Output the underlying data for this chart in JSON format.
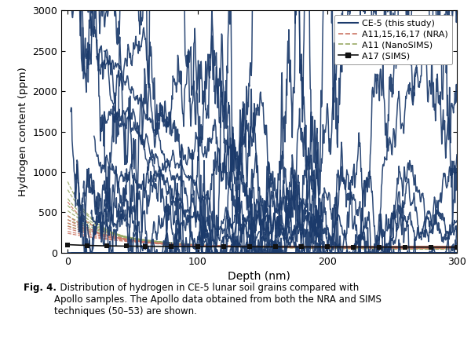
{
  "title": "",
  "xlabel": "Depth (nm)",
  "ylabel": "Hydrogen content (ppm)",
  "xlim": [
    -5,
    300
  ],
  "ylim": [
    0,
    3000
  ],
  "xticks": [
    0,
    100,
    200,
    300
  ],
  "yticks": [
    0,
    500,
    1000,
    1500,
    2000,
    2500,
    3000
  ],
  "ce5_color": "#1b3a6b",
  "nra_color": "#cc7766",
  "nanosims_color": "#99aa66",
  "sims_color": "#111111",
  "fig_caption_bold": "Fig. 4.",
  "fig_caption_rest": "  Distribution of hydrogen in CE-5 lunar soil grains compared with Apollo samples. The Apollo data obtained from both the NRA and SIMS techniques (50–53) are shown.",
  "legend_labels": [
    "CE-5 (this study)",
    "A11,15,16,17 (NRA)",
    "A11 (NanoSIMS)",
    "A17 (SIMS)"
  ]
}
